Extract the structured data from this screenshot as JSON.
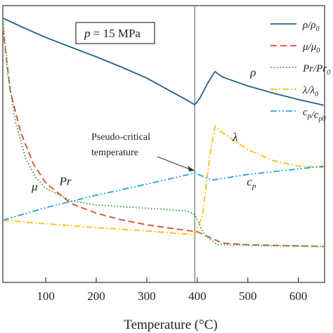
{
  "chart_data": {
    "type": "line",
    "xlabel": "Temperature (°C)",
    "xlim": [
      15,
      652
    ],
    "ylim": [
      0,
      1
    ],
    "x_ticks": [
      100,
      200,
      300,
      400,
      500,
      600
    ],
    "grid": false,
    "parameter_box": "p = 15 MPa",
    "pseudo_critical": {
      "x": 395,
      "label_line1": "Pseudo-critical",
      "label_line2": "temperature"
    },
    "legend": {
      "placement": "top-right",
      "entries": [
        {
          "id": "rho",
          "text": "ρ/ρ0"
        },
        {
          "id": "mu",
          "text": "μ/μ0"
        },
        {
          "id": "pr",
          "text": "Pr/Pr0"
        },
        {
          "id": "lambda",
          "text": "λ/λ0"
        },
        {
          "id": "cp",
          "text": "cp/cp0"
        }
      ]
    },
    "series": [
      {
        "id": "rho",
        "name": "ρ/ρ0",
        "color": "#1f5f8b",
        "dash": "solid",
        "label": "ρ",
        "label_at": [
          505,
          0.745
        ],
        "x": [
          15,
          50,
          100,
          150,
          200,
          250,
          300,
          350,
          380,
          395,
          405,
          420,
          435,
          450,
          500,
          550,
          600,
          650
        ],
        "y": [
          0.955,
          0.925,
          0.885,
          0.85,
          0.815,
          0.778,
          0.738,
          0.688,
          0.658,
          0.642,
          0.665,
          0.718,
          0.762,
          0.742,
          0.71,
          0.684,
          0.661,
          0.64
        ]
      },
      {
        "id": "mu",
        "name": "μ/μ0",
        "color": "#e0453a",
        "dash": "dashed",
        "label": "μ",
        "label_at": [
          72,
          0.332
        ],
        "x": [
          15,
          30,
          50,
          75,
          100,
          150,
          200,
          250,
          300,
          350,
          400,
          430,
          450,
          500,
          600,
          650
        ],
        "y": [
          0.92,
          0.69,
          0.545,
          0.43,
          0.36,
          0.285,
          0.25,
          0.226,
          0.208,
          0.195,
          0.183,
          0.158,
          0.142,
          0.136,
          0.132,
          0.13
        ]
      },
      {
        "id": "pr",
        "name": "Pr/Pr0",
        "color": "#3aaa35",
        "dash": "dotted",
        "label": "Pr",
        "label_at": [
          127,
          0.352
        ],
        "x": [
          15,
          25,
          40,
          60,
          80,
          100,
          150,
          200,
          300,
          380,
          395,
          415,
          440,
          500,
          650
        ],
        "y": [
          0.955,
          0.75,
          0.58,
          0.45,
          0.38,
          0.34,
          0.295,
          0.28,
          0.268,
          0.258,
          0.245,
          0.17,
          0.137,
          0.134,
          0.13
        ]
      },
      {
        "id": "lambda",
        "name": "λ/λ0",
        "color": "#f2c01a",
        "dash": "dashdot",
        "label": "λ",
        "label_at": [
          470,
          0.51
        ],
        "x": [
          15,
          100,
          200,
          300,
          395,
          410,
          425,
          435,
          450,
          500,
          550,
          600,
          650
        ],
        "y": [
          0.225,
          0.212,
          0.198,
          0.186,
          0.172,
          0.24,
          0.46,
          0.565,
          0.54,
          0.48,
          0.44,
          0.42,
          0.415
        ]
      },
      {
        "id": "cp",
        "name": "cp/cp0",
        "color": "#1aa7d8",
        "dash": "dashdotdot",
        "label": "cp",
        "label_at": [
          498,
          0.35
        ],
        "x": [
          15,
          100,
          200,
          300,
          395,
          430,
          500,
          600,
          650
        ],
        "y": [
          0.225,
          0.27,
          0.315,
          0.355,
          0.395,
          0.37,
          0.39,
          0.41,
          0.42
        ]
      }
    ]
  }
}
